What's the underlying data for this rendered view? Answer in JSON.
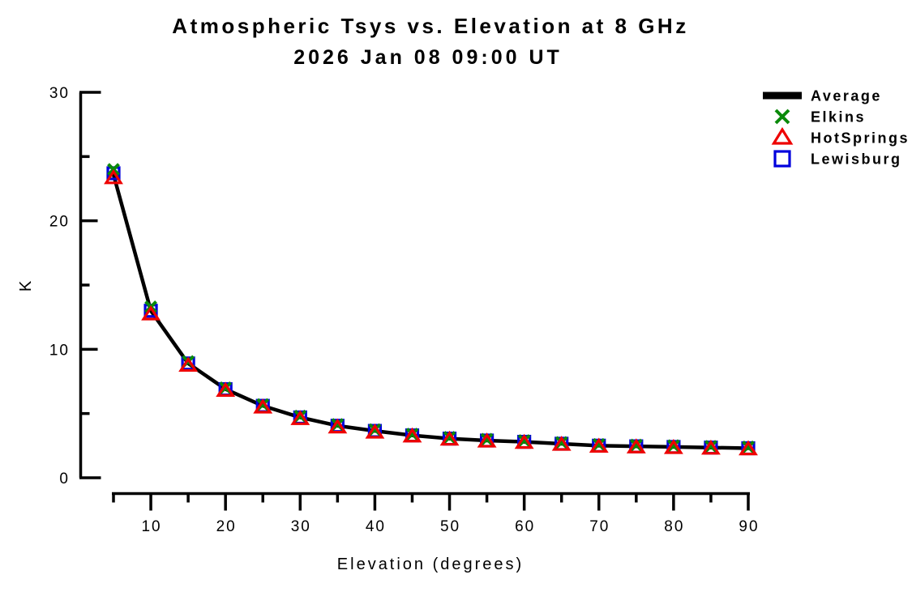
{
  "chart_data": {
    "type": "line",
    "title": "Atmospheric Tsys vs. Elevation at 8 GHz",
    "subtitle": "2026 Jan 08 09:00 UT",
    "xlabel": "Elevation (degrees)",
    "ylabel": "K",
    "xlim": [
      5,
      90
    ],
    "ylim": [
      0,
      30
    ],
    "x_major_ticks": [
      10,
      20,
      30,
      40,
      50,
      60,
      70,
      80,
      90
    ],
    "x_minor_ticks": [
      5,
      15,
      25,
      35,
      45,
      55,
      65,
      75,
      85
    ],
    "y_major_ticks": [
      0,
      10,
      20,
      30
    ],
    "y_minor_ticks": [
      5,
      15,
      25
    ],
    "grid": false,
    "legend_position": "top-right",
    "axis_color": "#000000",
    "x": [
      5,
      10,
      15,
      20,
      25,
      30,
      35,
      40,
      45,
      50,
      55,
      60,
      65,
      70,
      75,
      80,
      85,
      90
    ],
    "series": [
      {
        "name": "Average",
        "type": "line",
        "marker": "thick-line",
        "color": "#000000",
        "values": [
          23.6,
          13.0,
          8.9,
          6.9,
          5.6,
          4.7,
          4.05,
          3.65,
          3.3,
          3.05,
          2.9,
          2.8,
          2.65,
          2.5,
          2.45,
          2.4,
          2.35,
          2.3
        ]
      },
      {
        "name": "Elkins",
        "type": "scatter",
        "marker": "x",
        "color": "#0a8a0a",
        "values": [
          24.0,
          13.3,
          9.05,
          7.0,
          5.7,
          4.8,
          4.15,
          3.75,
          3.4,
          3.15,
          3.0,
          2.9,
          2.75,
          2.6,
          2.55,
          2.5,
          2.45,
          2.4
        ]
      },
      {
        "name": "HotSprings",
        "type": "scatter",
        "marker": "triangle",
        "color": "#ee0000",
        "values": [
          23.3,
          12.7,
          8.7,
          6.75,
          5.45,
          4.55,
          3.9,
          3.5,
          3.2,
          2.95,
          2.8,
          2.7,
          2.55,
          2.4,
          2.35,
          2.3,
          2.25,
          2.2
        ]
      },
      {
        "name": "Lewisburg",
        "type": "scatter",
        "marker": "square",
        "color": "#0000dd",
        "values": [
          23.7,
          13.0,
          8.9,
          6.9,
          5.6,
          4.7,
          4.05,
          3.65,
          3.3,
          3.05,
          2.9,
          2.8,
          2.65,
          2.5,
          2.45,
          2.4,
          2.35,
          2.3
        ]
      }
    ]
  }
}
